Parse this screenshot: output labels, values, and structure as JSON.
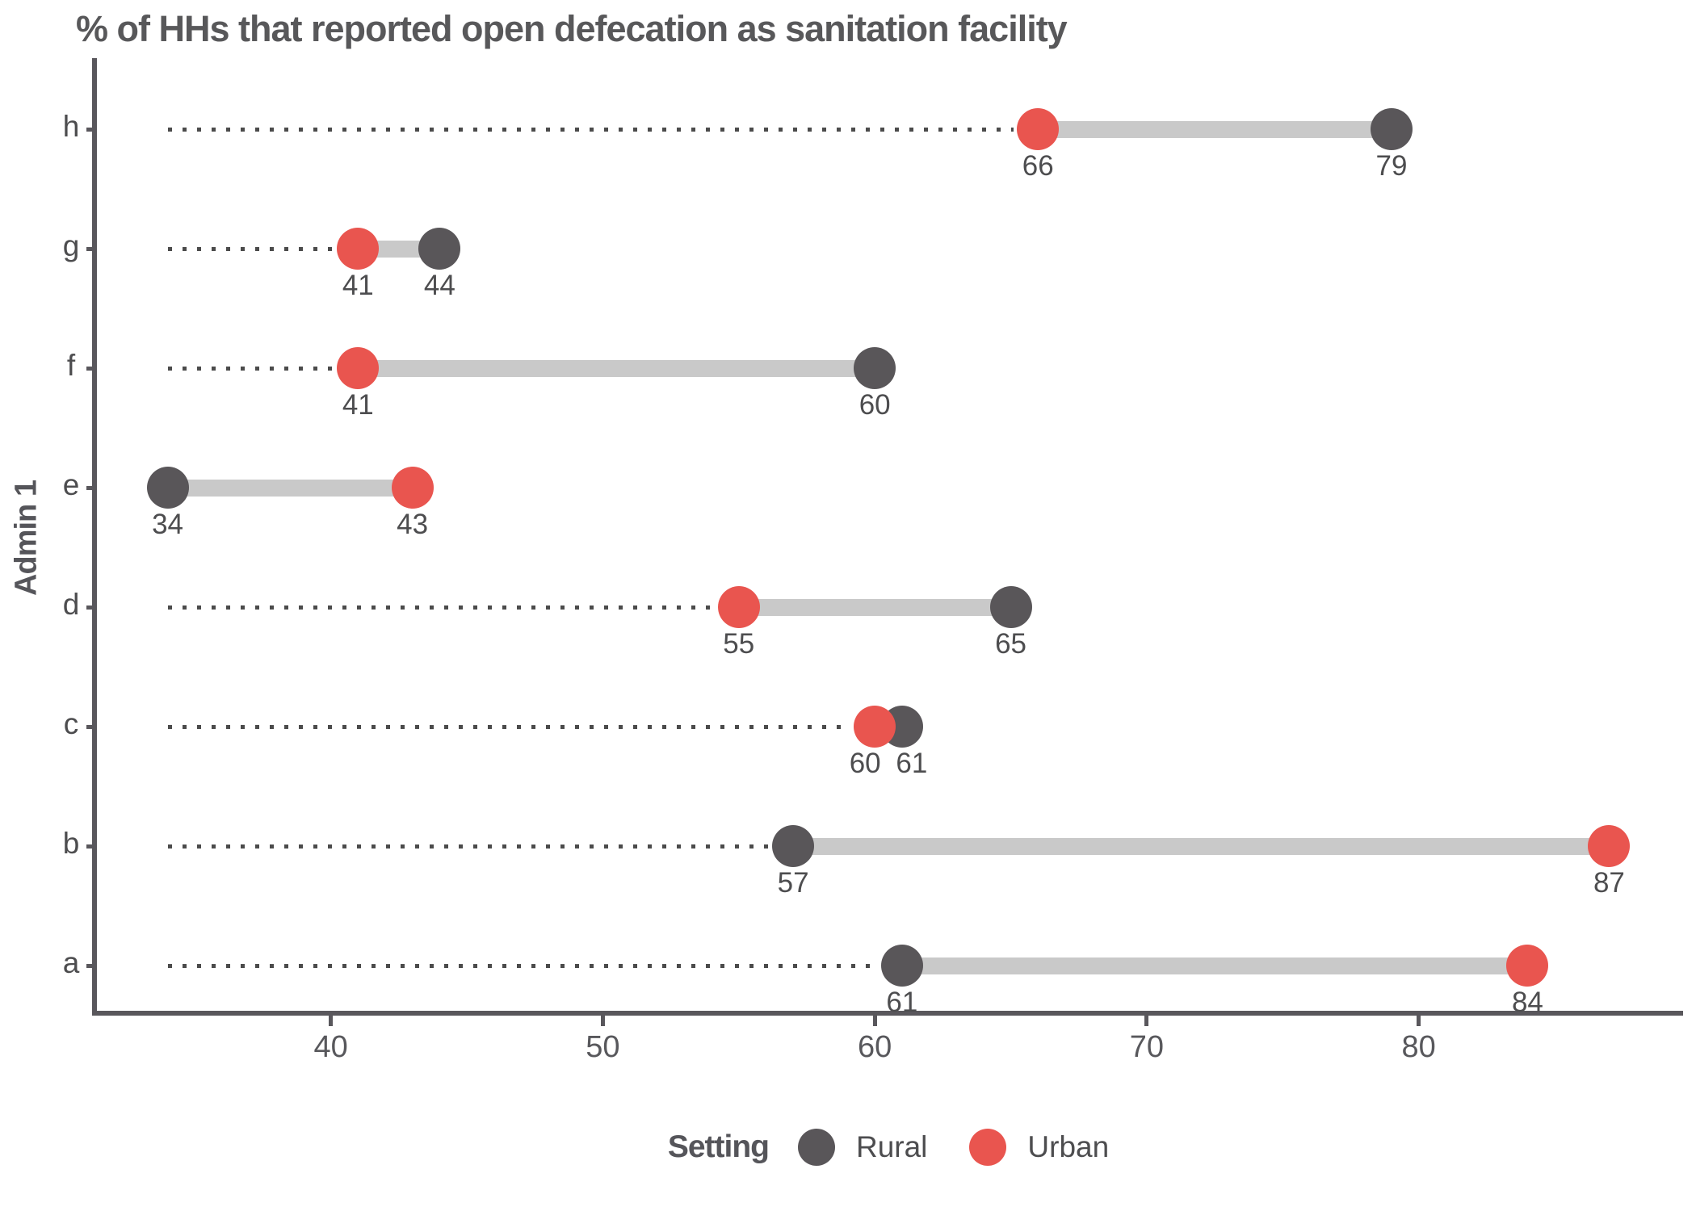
{
  "title": "% of HHs that reported open defecation as sanitation facility",
  "y_axis_label": "Admin 1",
  "legend": {
    "title": "Setting",
    "items": [
      {
        "label": "Rural",
        "color": "#595659"
      },
      {
        "label": "Urban",
        "color": "#E9554F"
      }
    ]
  },
  "colors": {
    "rural": "#595659",
    "urban": "#E9554F",
    "connector": "#C9C9C9",
    "leader_dots": "#4B4B4B",
    "axis": "#59575C",
    "text": "#4D4D4F"
  },
  "chart_data": {
    "type": "dumbbell",
    "orientation": "horizontal",
    "title": "% of HHs that reported open defecation as sanitation facility",
    "xlabel": "",
    "ylabel": "Admin 1",
    "categories": [
      "h",
      "g",
      "f",
      "e",
      "d",
      "c",
      "b",
      "a"
    ],
    "series": [
      {
        "name": "Rural",
        "values": [
          79,
          44,
          60,
          34,
          65,
          61,
          57,
          61
        ]
      },
      {
        "name": "Urban",
        "values": [
          66,
          41,
          41,
          43,
          55,
          60,
          87,
          84
        ]
      }
    ],
    "x_ticks": [
      40,
      50,
      60,
      70,
      80
    ],
    "xlim": [
      31.4,
      89.6
    ],
    "grid": "off",
    "legend_position": "bottom",
    "point_labels_shown": true,
    "leader_lines": "dotted from overall minimum value to each row's lower value"
  }
}
